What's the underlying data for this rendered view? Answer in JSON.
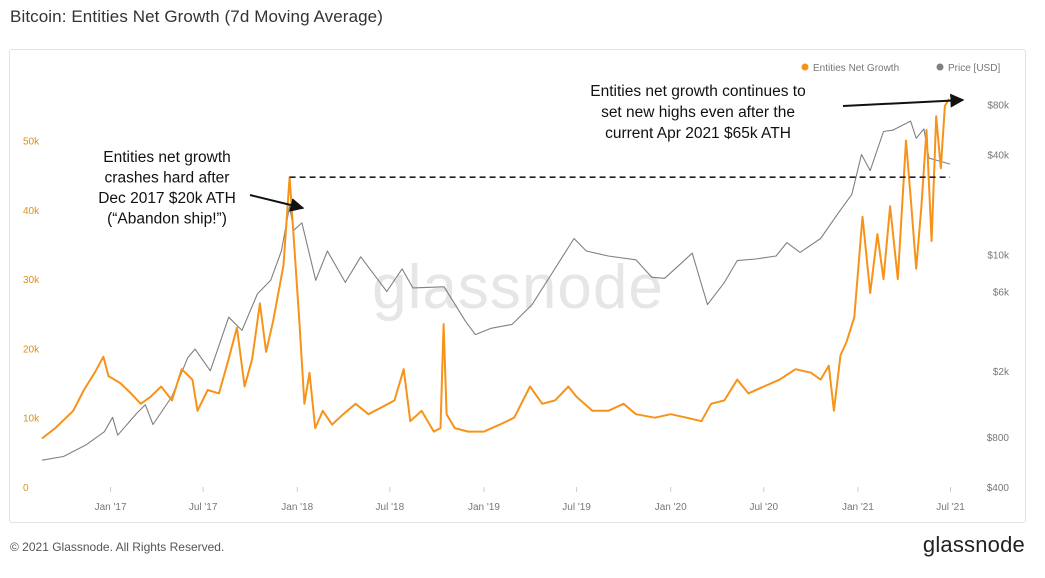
{
  "header": {
    "title": "Bitcoin: Entities Net Growth (7d Moving Average)"
  },
  "footer": {
    "copyright": "© 2021 Glassnode. All Rights Reserved.",
    "logo_text": "glassnode"
  },
  "watermark": "glassnode",
  "colors": {
    "growth": "#f7931a",
    "price": "#808080",
    "dashed": "#222222",
    "annotation": "#111111"
  },
  "annotations": [
    {
      "id": "left",
      "lines": [
        "Entities net growth",
        "crashes hard after",
        "Dec 2017 $20k ATH",
        "(“Abandon ship!”)"
      ]
    },
    {
      "id": "right",
      "lines": [
        "Entities net growth continues to",
        "set new highs even after the",
        "current Apr 2021 $65k ATH"
      ]
    }
  ],
  "chart_data": {
    "type": "line",
    "legend": {
      "placement": "top-right",
      "items": [
        {
          "name": "Entities Net Growth",
          "color": "#f7931a"
        },
        {
          "name": "Price [USD]",
          "color": "#808080"
        }
      ]
    },
    "x": {
      "ticks": [
        "Jan '17",
        "Jul '17",
        "Jan '18",
        "Jul '18",
        "Jan '19",
        "Jul '19",
        "Jan '20",
        "Jul '20",
        "Jan '21",
        "Jul '21"
      ],
      "range": [
        "2016-08-20",
        "2021-06-30"
      ]
    },
    "y_left": {
      "ticks": [
        "0",
        "10k",
        "20k",
        "30k",
        "40k",
        "50k"
      ],
      "range": [
        0,
        57000
      ]
    },
    "y_right": {
      "scale": "log",
      "ticks": [
        "$400",
        "$800",
        "$2k",
        "$6k",
        "$10k",
        "$40k",
        "$80k"
      ],
      "range": [
        400,
        95000
      ]
    },
    "series": [
      {
        "name": "Entities Net Growth",
        "axis": "left",
        "points": [
          [
            "2016-08-20",
            7000
          ],
          [
            "2016-09-15",
            8500
          ],
          [
            "2016-10-20",
            11000
          ],
          [
            "2016-11-10",
            14000
          ],
          [
            "2016-12-01",
            16500
          ],
          [
            "2016-12-18",
            18800
          ],
          [
            "2016-12-28",
            16000
          ],
          [
            "2017-01-20",
            15000
          ],
          [
            "2017-02-10",
            13500
          ],
          [
            "2017-03-01",
            12000
          ],
          [
            "2017-03-20",
            13000
          ],
          [
            "2017-04-10",
            14500
          ],
          [
            "2017-05-01",
            12500
          ],
          [
            "2017-05-20",
            17000
          ],
          [
            "2017-06-10",
            15500
          ],
          [
            "2017-06-20",
            11000
          ],
          [
            "2017-07-10",
            14000
          ],
          [
            "2017-08-01",
            13500
          ],
          [
            "2017-08-20",
            18500
          ],
          [
            "2017-09-05",
            23000
          ],
          [
            "2017-09-20",
            14500
          ],
          [
            "2017-10-05",
            18500
          ],
          [
            "2017-10-20",
            26500
          ],
          [
            "2017-11-01",
            19500
          ],
          [
            "2017-11-15",
            24000
          ],
          [
            "2017-12-05",
            32000
          ],
          [
            "2017-12-17",
            44700
          ],
          [
            "2017-12-25",
            36000
          ],
          [
            "2018-01-05",
            24000
          ],
          [
            "2018-01-15",
            12000
          ],
          [
            "2018-01-25",
            16500
          ],
          [
            "2018-02-05",
            8500
          ],
          [
            "2018-02-20",
            11000
          ],
          [
            "2018-03-10",
            9000
          ],
          [
            "2018-04-01",
            10500
          ],
          [
            "2018-04-25",
            12000
          ],
          [
            "2018-05-20",
            10500
          ],
          [
            "2018-06-15",
            11500
          ],
          [
            "2018-07-10",
            12500
          ],
          [
            "2018-07-28",
            17000
          ],
          [
            "2018-08-10",
            9500
          ],
          [
            "2018-09-01",
            11000
          ],
          [
            "2018-09-25",
            8000
          ],
          [
            "2018-10-08",
            8500
          ],
          [
            "2018-10-14",
            23500
          ],
          [
            "2018-10-20",
            10500
          ],
          [
            "2018-11-05",
            8500
          ],
          [
            "2018-12-01",
            8000
          ],
          [
            "2019-01-01",
            8000
          ],
          [
            "2019-02-01",
            9000
          ],
          [
            "2019-03-01",
            10000
          ],
          [
            "2019-04-01",
            14500
          ],
          [
            "2019-04-25",
            12000
          ],
          [
            "2019-05-20",
            12500
          ],
          [
            "2019-06-15",
            14500
          ],
          [
            "2019-07-01",
            13000
          ],
          [
            "2019-08-01",
            11000
          ],
          [
            "2019-09-01",
            11000
          ],
          [
            "2019-10-01",
            12000
          ],
          [
            "2019-10-25",
            10500
          ],
          [
            "2019-12-01",
            10000
          ],
          [
            "2020-01-01",
            10500
          ],
          [
            "2020-02-01",
            10000
          ],
          [
            "2020-03-01",
            9500
          ],
          [
            "2020-03-20",
            12000
          ],
          [
            "2020-04-15",
            12500
          ],
          [
            "2020-05-10",
            15500
          ],
          [
            "2020-06-01",
            13500
          ],
          [
            "2020-07-01",
            14500
          ],
          [
            "2020-08-01",
            15500
          ],
          [
            "2020-09-01",
            17000
          ],
          [
            "2020-10-01",
            16500
          ],
          [
            "2020-10-20",
            15500
          ],
          [
            "2020-11-05",
            17500
          ],
          [
            "2020-11-15",
            11000
          ],
          [
            "2020-11-28",
            19000
          ],
          [
            "2020-12-10",
            21000
          ],
          [
            "2020-12-25",
            24500
          ],
          [
            "2021-01-10",
            39000
          ],
          [
            "2021-01-25",
            28000
          ],
          [
            "2021-02-08",
            36500
          ],
          [
            "2021-02-20",
            30000
          ],
          [
            "2021-03-05",
            40500
          ],
          [
            "2021-03-20",
            30000
          ],
          [
            "2021-04-05",
            50000
          ],
          [
            "2021-04-15",
            41000
          ],
          [
            "2021-04-25",
            31500
          ],
          [
            "2021-05-05",
            40500
          ],
          [
            "2021-05-15",
            51500
          ],
          [
            "2021-05-25",
            35500
          ],
          [
            "2021-06-03",
            53500
          ],
          [
            "2021-06-12",
            46000
          ],
          [
            "2021-06-20",
            55000
          ],
          [
            "2021-06-28",
            56000
          ]
        ]
      },
      {
        "name": "Price [USD]",
        "axis": "right",
        "points": [
          [
            "2016-08-20",
            580
          ],
          [
            "2016-10-01",
            610
          ],
          [
            "2016-11-15",
            720
          ],
          [
            "2016-12-20",
            860
          ],
          [
            "2017-01-05",
            1050
          ],
          [
            "2017-01-15",
            820
          ],
          [
            "2017-02-20",
            1100
          ],
          [
            "2017-03-10",
            1250
          ],
          [
            "2017-03-25",
            950
          ],
          [
            "2017-05-01",
            1400
          ],
          [
            "2017-06-01",
            2400
          ],
          [
            "2017-06-15",
            2700
          ],
          [
            "2017-07-15",
            2000
          ],
          [
            "2017-08-20",
            4200
          ],
          [
            "2017-09-15",
            3500
          ],
          [
            "2017-10-15",
            5800
          ],
          [
            "2017-11-10",
            7000
          ],
          [
            "2017-12-01",
            10500
          ],
          [
            "2017-12-17",
            19500
          ],
          [
            "2017-12-25",
            14000
          ],
          [
            "2018-01-10",
            15500
          ],
          [
            "2018-02-06",
            7000
          ],
          [
            "2018-03-01",
            10500
          ],
          [
            "2018-04-05",
            6800
          ],
          [
            "2018-05-05",
            9700
          ],
          [
            "2018-06-25",
            6000
          ],
          [
            "2018-07-25",
            8200
          ],
          [
            "2018-08-15",
            6300
          ],
          [
            "2018-10-15",
            6400
          ],
          [
            "2018-11-25",
            4000
          ],
          [
            "2018-12-15",
            3300
          ],
          [
            "2019-01-15",
            3600
          ],
          [
            "2019-02-25",
            3800
          ],
          [
            "2019-04-05",
            5000
          ],
          [
            "2019-05-15",
            7800
          ],
          [
            "2019-06-26",
            12500
          ],
          [
            "2019-07-20",
            10500
          ],
          [
            "2019-09-01",
            9800
          ],
          [
            "2019-10-25",
            9300
          ],
          [
            "2019-11-25",
            7300
          ],
          [
            "2019-12-20",
            7200
          ],
          [
            "2020-01-15",
            8500
          ],
          [
            "2020-02-12",
            10200
          ],
          [
            "2020-03-13",
            5000
          ],
          [
            "2020-04-15",
            6800
          ],
          [
            "2020-05-10",
            9200
          ],
          [
            "2020-06-15",
            9400
          ],
          [
            "2020-07-25",
            9800
          ],
          [
            "2020-08-15",
            11800
          ],
          [
            "2020-09-10",
            10300
          ],
          [
            "2020-10-20",
            12500
          ],
          [
            "2020-11-25",
            18000
          ],
          [
            "2020-12-20",
            23000
          ],
          [
            "2021-01-08",
            40000
          ],
          [
            "2021-01-25",
            32000
          ],
          [
            "2021-02-20",
            55000
          ],
          [
            "2021-03-10",
            56000
          ],
          [
            "2021-04-14",
            63500
          ],
          [
            "2021-04-25",
            50000
          ],
          [
            "2021-05-10",
            57000
          ],
          [
            "2021-05-20",
            38000
          ],
          [
            "2021-06-10",
            36500
          ],
          [
            "2021-06-30",
            35000
          ]
        ]
      }
    ],
    "reference_line": {
      "axis": "left",
      "value": 44700,
      "style": "dashed",
      "from": "2017-12-17",
      "to": "2021-06-30"
    }
  }
}
